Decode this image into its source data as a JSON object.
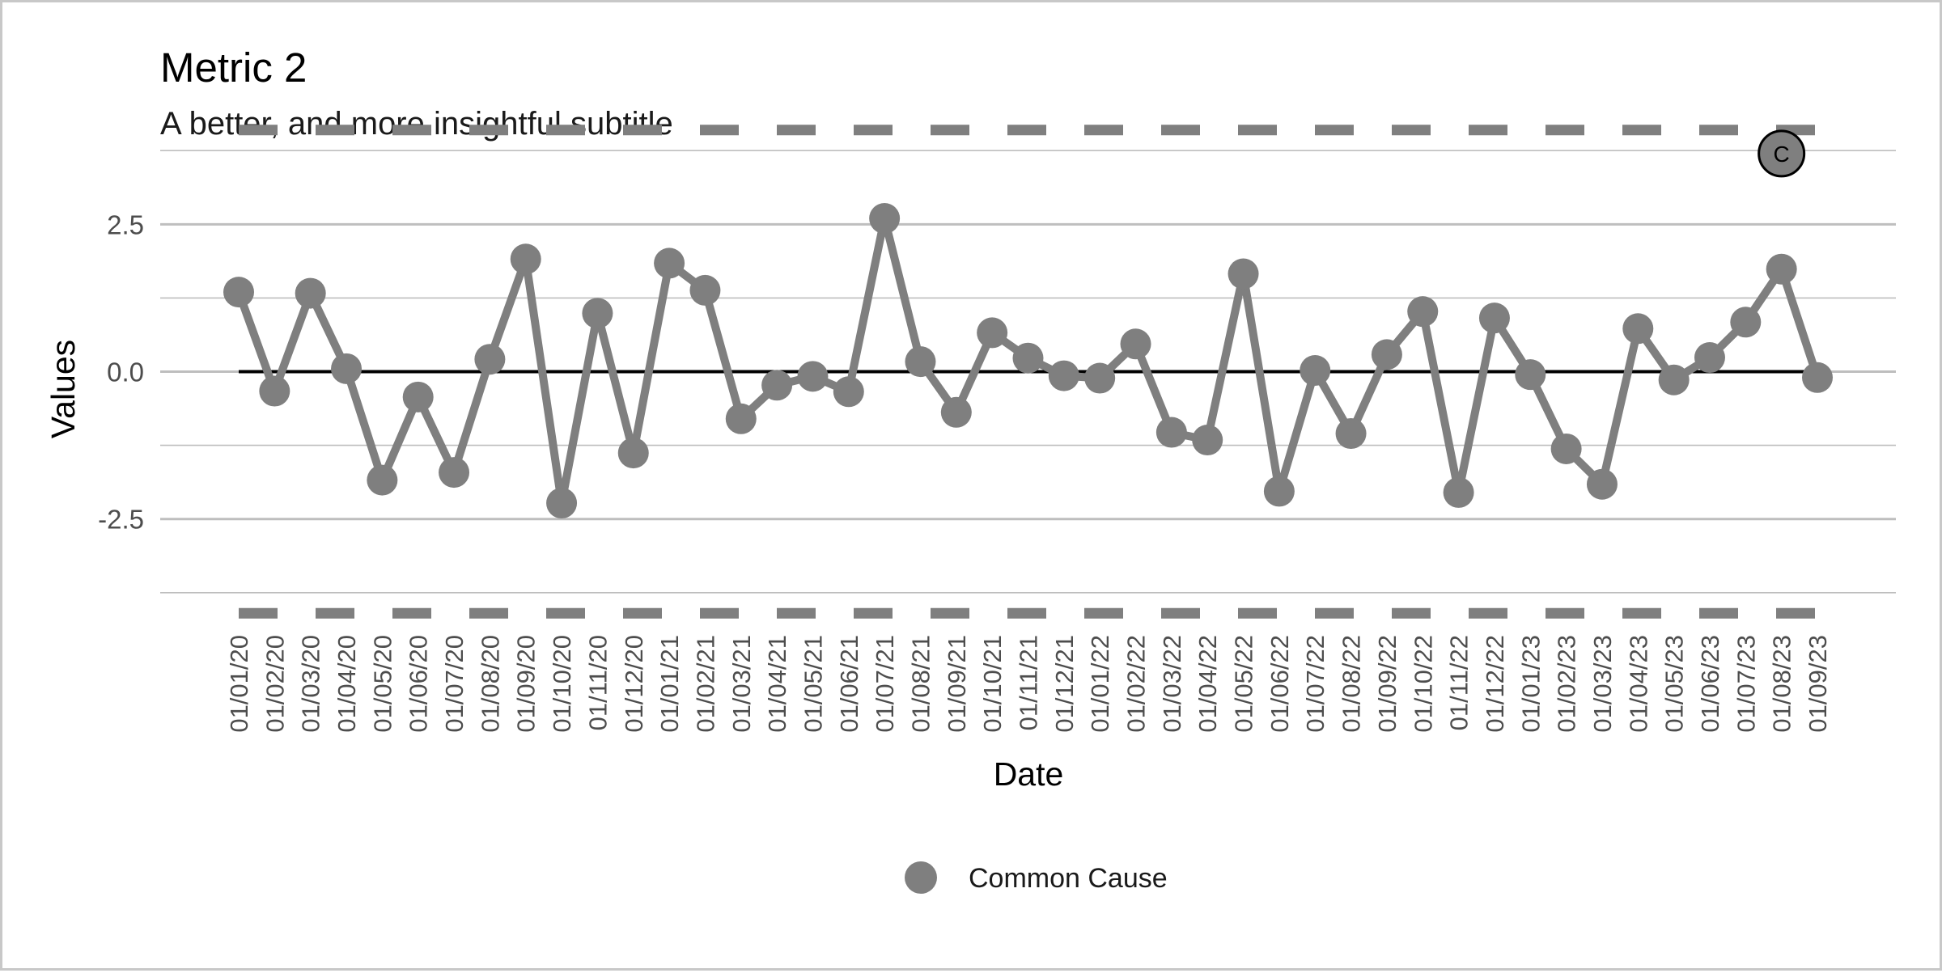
{
  "chart_data": {
    "type": "line",
    "title": "Metric 2",
    "subtitle": "A better, and more insightful subtitle",
    "xlabel": "Date",
    "ylabel": "Values",
    "ylim": [
      -4.0,
      4.0
    ],
    "yticks": [
      -2.5,
      0.0,
      2.5
    ],
    "ytick_labels": [
      "-2.5",
      "0.0",
      "2.5"
    ],
    "grid": true,
    "categories": [
      "01/01/20",
      "01/02/20",
      "01/03/20",
      "01/04/20",
      "01/05/20",
      "01/06/20",
      "01/07/20",
      "01/08/20",
      "01/09/20",
      "01/10/20",
      "01/11/20",
      "01/12/20",
      "01/01/21",
      "01/02/21",
      "01/03/21",
      "01/04/21",
      "01/05/21",
      "01/06/21",
      "01/07/21",
      "01/08/21",
      "01/09/21",
      "01/10/21",
      "01/11/21",
      "01/12/21",
      "01/01/22",
      "01/02/22",
      "01/03/22",
      "01/04/22",
      "01/05/22",
      "01/06/22",
      "01/07/22",
      "01/08/22",
      "01/09/22",
      "01/10/22",
      "01/11/22",
      "01/12/22",
      "01/01/23",
      "01/02/23",
      "01/03/23",
      "01/04/23",
      "01/05/23",
      "01/06/23",
      "01/07/23",
      "01/08/23",
      "01/09/23"
    ],
    "series": [
      {
        "name": "Common Cause",
        "values": [
          1.35,
          -0.33,
          1.33,
          0.05,
          -1.84,
          -0.43,
          -1.71,
          0.21,
          1.91,
          -2.23,
          0.99,
          -1.38,
          1.84,
          1.38,
          -0.8,
          -0.23,
          -0.08,
          -0.34,
          2.6,
          0.17,
          -0.69,
          0.66,
          0.23,
          -0.07,
          -0.11,
          0.47,
          -1.03,
          -1.16,
          1.66,
          -2.03,
          0.02,
          -1.05,
          0.29,
          1.02,
          -2.05,
          0.91,
          -0.05,
          -1.31,
          -1.91,
          0.73,
          -0.14,
          0.24,
          0.84,
          1.74,
          -0.1
        ]
      }
    ],
    "center_line": 0.0,
    "control_limits": {
      "upper": 4.1,
      "lower": -4.1
    },
    "annotation": {
      "label": "C",
      "category": "01/08/23",
      "value": 3.7
    },
    "colors": {
      "series": "#7f7f7f",
      "center": "#000000",
      "limits": "#7f7f7f",
      "grid": "#bebebe"
    },
    "legend": {
      "position": "bottom",
      "entries": [
        "Common Cause"
      ]
    }
  }
}
